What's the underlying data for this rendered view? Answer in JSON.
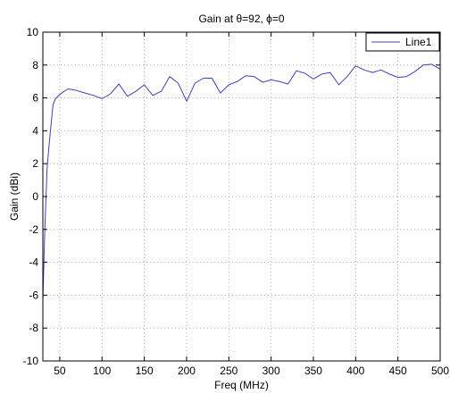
{
  "chart_data": {
    "type": "line",
    "title": "Gain at θ=92, ϕ=0",
    "xlabel": "Freq (MHz)",
    "ylabel": "Gain (dBi)",
    "xlim": [
      30,
      500
    ],
    "ylim": [
      -10,
      10
    ],
    "x_ticks": [
      50,
      100,
      150,
      200,
      250,
      300,
      350,
      400,
      450,
      500
    ],
    "y_ticks": [
      -10,
      -8,
      -6,
      -4,
      -2,
      0,
      2,
      4,
      6,
      8,
      10
    ],
    "grid": true,
    "legend_position": "top-right",
    "series": [
      {
        "name": "Line1",
        "color": "#3f3fb8",
        "x": [
          30,
          32,
          35,
          38,
          42,
          45,
          50,
          55,
          60,
          70,
          80,
          90,
          100,
          110,
          120,
          130,
          140,
          150,
          160,
          170,
          180,
          190,
          200,
          210,
          220,
          230,
          240,
          250,
          260,
          270,
          280,
          290,
          300,
          310,
          320,
          330,
          340,
          350,
          360,
          370,
          380,
          390,
          400,
          410,
          420,
          430,
          440,
          450,
          460,
          470,
          480,
          490,
          500
        ],
        "values": [
          -6.4,
          -2.5,
          1.7,
          3.5,
          5.6,
          5.95,
          6.2,
          6.4,
          6.55,
          6.45,
          6.3,
          6.15,
          5.95,
          6.25,
          6.85,
          6.1,
          6.4,
          6.8,
          6.15,
          6.4,
          7.3,
          6.9,
          5.8,
          6.9,
          7.2,
          7.2,
          6.3,
          6.8,
          7.0,
          7.35,
          7.3,
          6.95,
          7.1,
          7.0,
          6.85,
          7.65,
          7.5,
          7.15,
          7.45,
          7.55,
          6.8,
          7.3,
          7.95,
          7.7,
          7.55,
          7.7,
          7.45,
          7.25,
          7.3,
          7.6,
          8.0,
          8.05,
          7.75
        ]
      }
    ]
  }
}
